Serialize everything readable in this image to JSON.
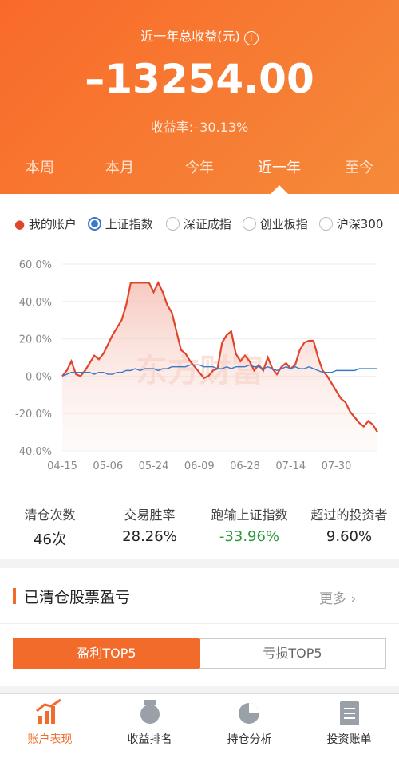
{
  "header": {
    "title": "近一年总收益(元)",
    "total": "–13254.00",
    "rate_label": "收益率:",
    "rate": "–30.13%"
  },
  "tabs": [
    "本周",
    "本月",
    "今年",
    "近一年",
    "至今"
  ],
  "selected_tab": 3,
  "chart_data": {
    "type": "line",
    "watermark": "东方财富",
    "categories": [
      "04-15",
      null,
      null,
      null,
      null,
      null,
      null,
      null,
      null,
      null,
      "05-06",
      null,
      null,
      null,
      null,
      null,
      null,
      null,
      null,
      null,
      "05-24",
      null,
      null,
      null,
      null,
      null,
      null,
      null,
      null,
      null,
      "06-09",
      null,
      null,
      null,
      null,
      null,
      null,
      null,
      null,
      null,
      "06-28",
      null,
      null,
      null,
      null,
      null,
      null,
      null,
      null,
      null,
      "07-14",
      null,
      null,
      null,
      null,
      null,
      null,
      null,
      null,
      null,
      "07-30",
      null,
      null,
      null,
      null,
      null,
      null,
      null,
      null,
      null
    ],
    "series": [
      {
        "name": "我的账户",
        "color": "#e0452b",
        "values": [
          0,
          3,
          8,
          1,
          0,
          3,
          7,
          11,
          9,
          12,
          17,
          22,
          26,
          30,
          38,
          50,
          50,
          50,
          50,
          50,
          45,
          50,
          45,
          38,
          34,
          24,
          14,
          12,
          8,
          5,
          2,
          -1,
          0,
          3,
          4,
          18,
          22,
          24,
          12,
          8,
          11,
          8,
          3,
          6,
          3,
          10,
          4,
          1,
          5,
          7,
          4,
          6,
          14,
          18,
          19,
          19,
          10,
          3,
          0,
          -4,
          -8,
          -12,
          -14,
          -19,
          -22,
          -25,
          -27,
          -24,
          -26,
          -30
        ]
      },
      {
        "name": "上证指数",
        "color": "#3a78c8",
        "values": [
          0,
          1,
          2,
          2,
          2,
          2,
          2,
          1,
          2,
          2,
          1,
          1,
          2,
          2,
          3,
          3,
          4,
          3,
          4,
          4,
          4,
          3,
          4,
          4,
          5,
          5,
          5,
          5,
          6,
          6,
          6,
          5,
          5,
          5,
          4,
          4,
          5,
          4,
          5,
          5,
          5,
          6,
          5,
          5,
          4,
          5,
          4,
          3,
          4,
          5,
          4,
          5,
          4,
          4,
          5,
          4,
          3,
          2,
          2,
          2,
          3,
          3,
          3,
          3,
          3,
          4,
          4,
          4,
          4,
          4
        ]
      }
    ],
    "other_options": [
      "深证成指",
      "创业板指",
      "沪深300"
    ],
    "ylim": [
      -40,
      60
    ],
    "yticks": [
      {
        "value": -40,
        "label": "-40.0%"
      },
      {
        "value": -20,
        "label": "-20.0%"
      },
      {
        "value": 0,
        "label": "0.0%"
      },
      {
        "value": 20,
        "label": "20.0%"
      },
      {
        "value": 40,
        "label": "40.0%"
      },
      {
        "value": 60,
        "label": "60.0%"
      }
    ],
    "grid": true
  },
  "stats": [
    {
      "name": "清仓次数",
      "value": "46次"
    },
    {
      "name": "交易胜率",
      "value": "28.26%"
    },
    {
      "name": "跑输上证指数",
      "value": "-33.96%"
    },
    {
      "name": "超过的投资者",
      "value": "9.60%"
    }
  ],
  "section": {
    "title": "已清仓股票盈亏",
    "more": "更多"
  },
  "toggle": [
    "盈利TOP5",
    "亏损TOP5"
  ],
  "nav": [
    "账户表现",
    "收益排名",
    "持仓分析",
    "投资账单"
  ]
}
